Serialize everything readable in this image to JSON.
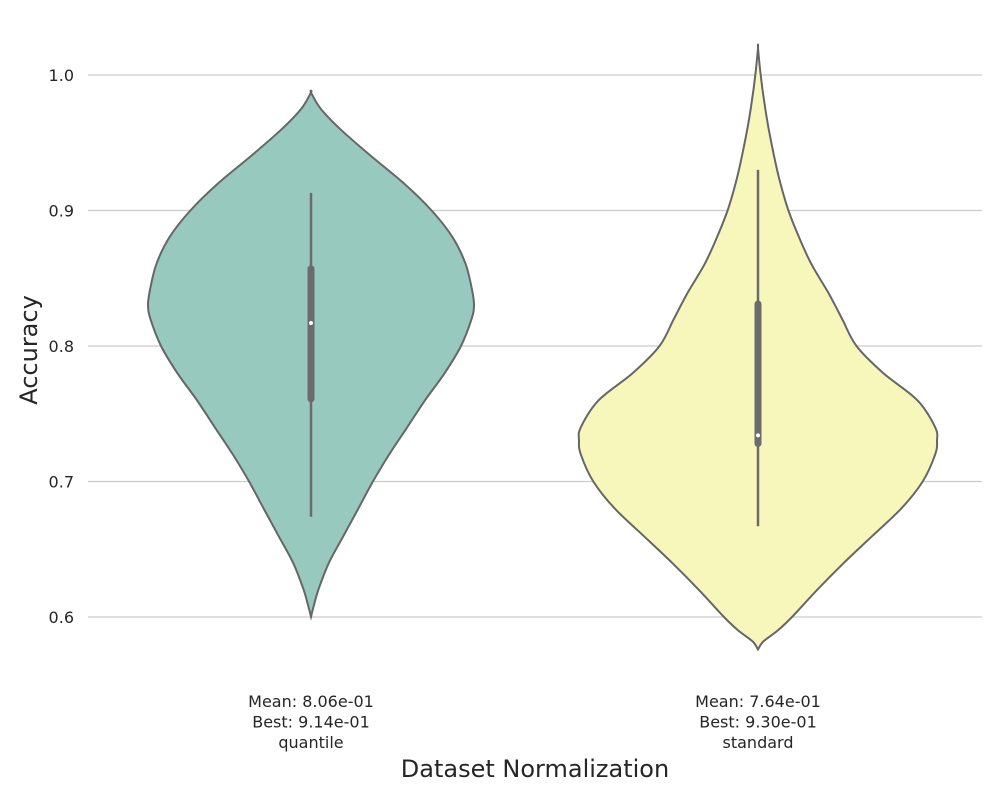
{
  "chart_data": {
    "type": "violin",
    "title": "",
    "xlabel": "Dataset Normalization",
    "ylabel": "Accuracy",
    "ylim": [
      0.57,
      1.04
    ],
    "yticks": [
      0.6,
      0.7,
      0.8,
      0.9,
      1.0
    ],
    "ytick_labels": [
      "0.6",
      "0.7",
      "0.8",
      "0.9",
      "1.0"
    ],
    "grid": "horizontal",
    "categories": [
      {
        "name": "quantile",
        "label_lines": [
          "Mean: 8.06e-01",
          "Best: 9.14e-01",
          "quantile"
        ],
        "color": "#97c9bf",
        "median": 0.817,
        "q1": 0.761,
        "q3": 0.857,
        "whisker_low": 0.674,
        "whisker_high": 0.913,
        "density": [
          [
            0.6,
            0.0
          ],
          [
            0.605,
            0.01
          ],
          [
            0.62,
            0.045
          ],
          [
            0.64,
            0.11
          ],
          [
            0.66,
            0.2
          ],
          [
            0.68,
            0.29
          ],
          [
            0.7,
            0.38
          ],
          [
            0.72,
            0.48
          ],
          [
            0.74,
            0.59
          ],
          [
            0.76,
            0.7
          ],
          [
            0.78,
            0.82
          ],
          [
            0.8,
            0.92
          ],
          [
            0.82,
            0.985
          ],
          [
            0.83,
            1.0
          ],
          [
            0.84,
            0.99
          ],
          [
            0.86,
            0.95
          ],
          [
            0.88,
            0.87
          ],
          [
            0.9,
            0.74
          ],
          [
            0.92,
            0.57
          ],
          [
            0.94,
            0.37
          ],
          [
            0.96,
            0.18
          ],
          [
            0.975,
            0.06
          ],
          [
            0.987,
            0.0
          ]
        ]
      },
      {
        "name": "standard",
        "label_lines": [
          "Mean: 7.64e-01",
          "Best: 9.30e-01",
          "standard"
        ],
        "color": "#f7f7bc",
        "median": 0.734,
        "q1": 0.728,
        "q3": 0.831,
        "whisker_low": 0.667,
        "whisker_high": 0.93,
        "density": [
          [
            0.576,
            0.0
          ],
          [
            0.582,
            0.03
          ],
          [
            0.59,
            0.11
          ],
          [
            0.6,
            0.19
          ],
          [
            0.62,
            0.33
          ],
          [
            0.64,
            0.48
          ],
          [
            0.66,
            0.64
          ],
          [
            0.68,
            0.8
          ],
          [
            0.7,
            0.92
          ],
          [
            0.72,
            0.99
          ],
          [
            0.73,
            1.0
          ],
          [
            0.74,
            0.99
          ],
          [
            0.76,
            0.89
          ],
          [
            0.78,
            0.7
          ],
          [
            0.8,
            0.55
          ],
          [
            0.82,
            0.47
          ],
          [
            0.84,
            0.39
          ],
          [
            0.86,
            0.3
          ],
          [
            0.88,
            0.23
          ],
          [
            0.9,
            0.17
          ],
          [
            0.92,
            0.125
          ],
          [
            0.94,
            0.09
          ],
          [
            0.96,
            0.06
          ],
          [
            0.98,
            0.035
          ],
          [
            1.0,
            0.015
          ],
          [
            1.02,
            0.0
          ]
        ]
      }
    ]
  }
}
